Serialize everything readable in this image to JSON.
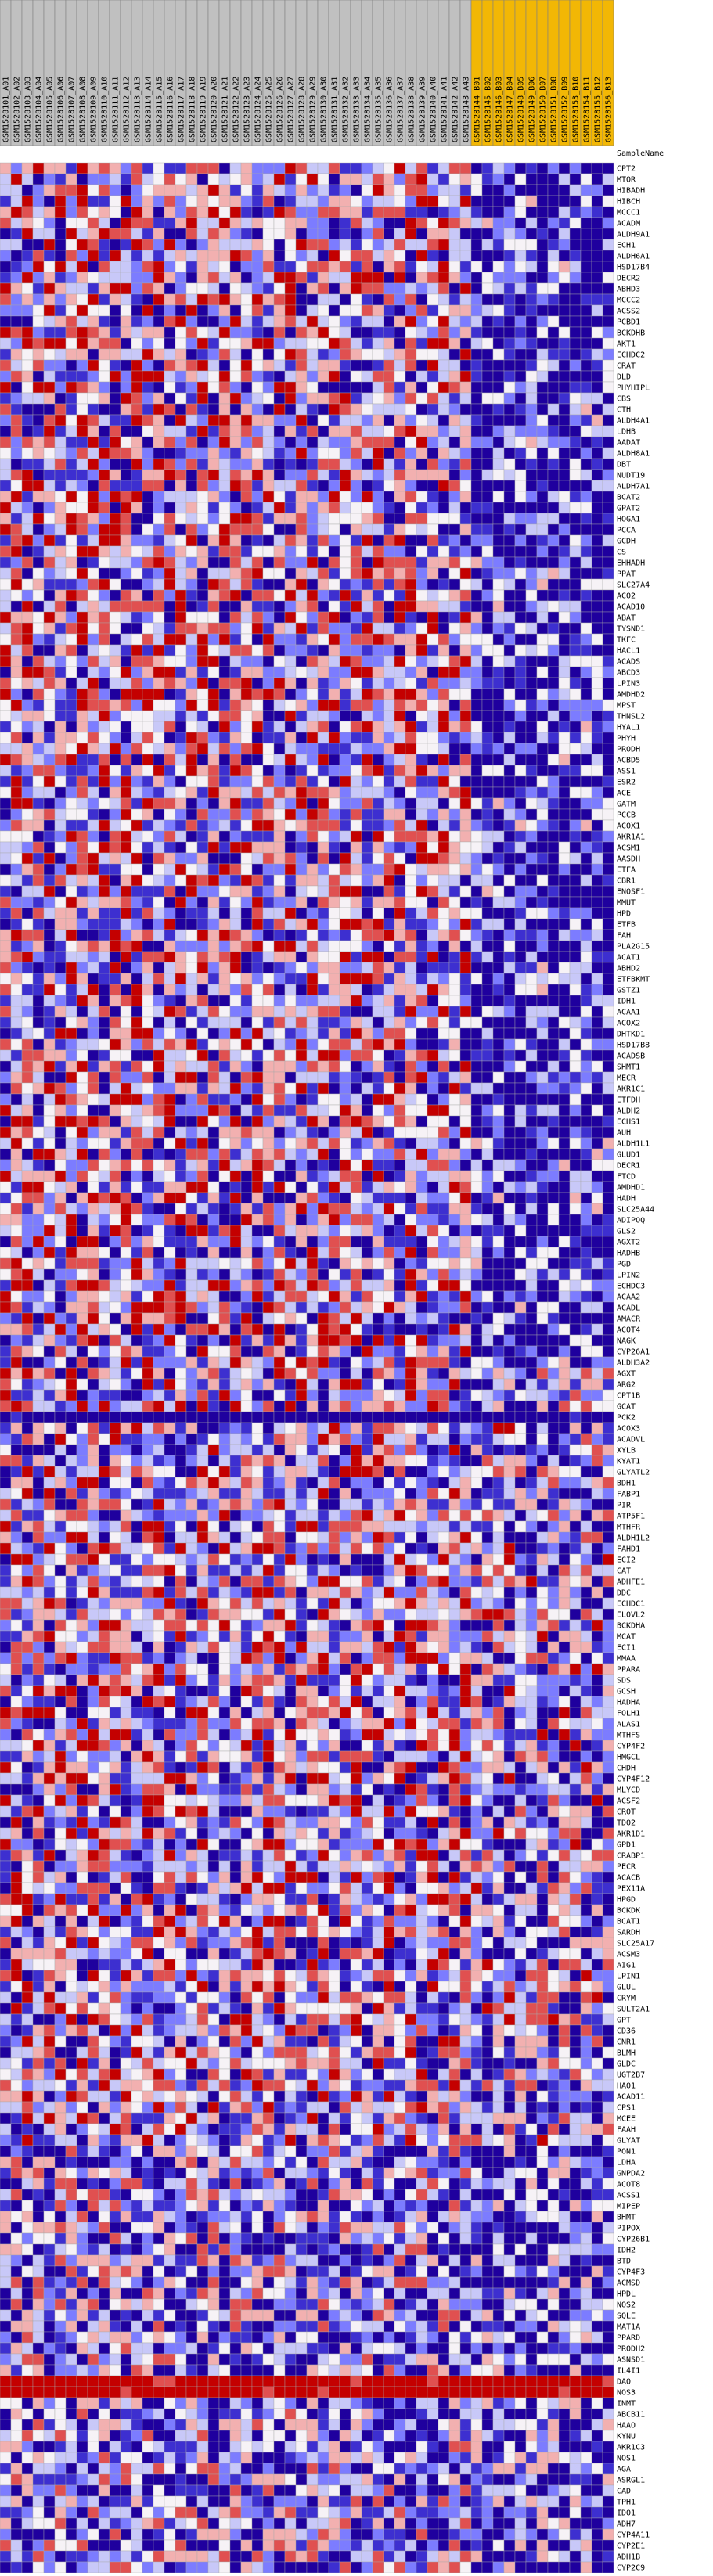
{
  "header": {
    "row_label": "SampleName"
  },
  "samples": [
    {
      "name": "GSM1528101_A01",
      "color": "#c0c0c0"
    },
    {
      "name": "GSM1528102_A02",
      "color": "#c0c0c0"
    },
    {
      "name": "GSM1528103_A03",
      "color": "#c0c0c0"
    },
    {
      "name": "GSM1528104_A04",
      "color": "#c0c0c0"
    },
    {
      "name": "GSM1528105_A05",
      "color": "#c0c0c0"
    },
    {
      "name": "GSM1528106_A06",
      "color": "#c0c0c0"
    },
    {
      "name": "GSM1528107_A07",
      "color": "#c0c0c0"
    },
    {
      "name": "GSM1528108_A08",
      "color": "#c0c0c0"
    },
    {
      "name": "GSM1528109_A09",
      "color": "#c0c0c0"
    },
    {
      "name": "GSM1528110_A10",
      "color": "#c0c0c0"
    },
    {
      "name": "GSM1528111_A11",
      "color": "#c0c0c0"
    },
    {
      "name": "GSM1528112_A12",
      "color": "#c0c0c0"
    },
    {
      "name": "GSM1528113_A13",
      "color": "#c0c0c0"
    },
    {
      "name": "GSM1528114_A14",
      "color": "#c0c0c0"
    },
    {
      "name": "GSM1528115_A15",
      "color": "#c0c0c0"
    },
    {
      "name": "GSM1528116_A16",
      "color": "#c0c0c0"
    },
    {
      "name": "GSM1528117_A17",
      "color": "#c0c0c0"
    },
    {
      "name": "GSM1528118_A18",
      "color": "#c0c0c0"
    },
    {
      "name": "GSM1528119_A19",
      "color": "#c0c0c0"
    },
    {
      "name": "GSM1528120_A20",
      "color": "#c0c0c0"
    },
    {
      "name": "GSM1528121_A21",
      "color": "#c0c0c0"
    },
    {
      "name": "GSM1528122_A22",
      "color": "#c0c0c0"
    },
    {
      "name": "GSM1528123_A23",
      "color": "#c0c0c0"
    },
    {
      "name": "GSM1528124_A24",
      "color": "#c0c0c0"
    },
    {
      "name": "GSM1528125_A25",
      "color": "#c0c0c0"
    },
    {
      "name": "GSM1528126_A26",
      "color": "#c0c0c0"
    },
    {
      "name": "GSM1528127_A27",
      "color": "#c0c0c0"
    },
    {
      "name": "GSM1528128_A28",
      "color": "#c0c0c0"
    },
    {
      "name": "GSM1528129_A29",
      "color": "#c0c0c0"
    },
    {
      "name": "GSM1528130_A30",
      "color": "#c0c0c0"
    },
    {
      "name": "GSM1528131_A31",
      "color": "#c0c0c0"
    },
    {
      "name": "GSM1528132_A32",
      "color": "#c0c0c0"
    },
    {
      "name": "GSM1528133_A33",
      "color": "#c0c0c0"
    },
    {
      "name": "GSM1528134_A34",
      "color": "#c0c0c0"
    },
    {
      "name": "GSM1528135_A35",
      "color": "#c0c0c0"
    },
    {
      "name": "GSM1528136_A36",
      "color": "#c0c0c0"
    },
    {
      "name": "GSM1528137_A37",
      "color": "#c0c0c0"
    },
    {
      "name": "GSM1528138_A38",
      "color": "#c0c0c0"
    },
    {
      "name": "GSM1528139_A39",
      "color": "#c0c0c0"
    },
    {
      "name": "GSM1528140_A40",
      "color": "#c0c0c0"
    },
    {
      "name": "GSM1528141_A41",
      "color": "#c0c0c0"
    },
    {
      "name": "GSM1528142_A42",
      "color": "#c0c0c0"
    },
    {
      "name": "GSM1528143_A43",
      "color": "#c0c0c0"
    },
    {
      "name": "GSM1528144_B01",
      "color": "#f2b705"
    },
    {
      "name": "GSM1528145_B02",
      "color": "#f2b705"
    },
    {
      "name": "GSM1528146_B03",
      "color": "#f2b705"
    },
    {
      "name": "GSM1528147_B04",
      "color": "#f2b705"
    },
    {
      "name": "GSM1528148_B05",
      "color": "#f2b705"
    },
    {
      "name": "GSM1528149_B06",
      "color": "#f2b705"
    },
    {
      "name": "GSM1528150_B07",
      "color": "#f2b705"
    },
    {
      "name": "GSM1528151_B08",
      "color": "#f2b705"
    },
    {
      "name": "GSM1528152_B09",
      "color": "#f2b705"
    },
    {
      "name": "GSM1528153_B10",
      "color": "#f2b705"
    },
    {
      "name": "GSM1528154_B11",
      "color": "#f2b705"
    },
    {
      "name": "GSM1528155_B12",
      "color": "#f2b705"
    },
    {
      "name": "GSM1528156_B13",
      "color": "#f2b705"
    }
  ],
  "genes": [
    "CPT2",
    "MTOR",
    "HIBADH",
    "HIBCH",
    "MCCC1",
    "ACADM",
    "ALDH9A1",
    "ECH1",
    "ALDH6A1",
    "HSD17B4",
    "DECR2",
    "ABHD3",
    "MCCC2",
    "ACSS2",
    "PCBD1",
    "BCKDHB",
    "AKT1",
    "ECHDC2",
    "CRAT",
    "DLD",
    "PHYHIPL",
    "CBS",
    "CTH",
    "ALDH4A1",
    "LDHB",
    "AADAT",
    "ALDH8A1",
    "DBT",
    "NUDT19",
    "ALDH7A1",
    "BCAT2",
    "GPAT2",
    "HOGA1",
    "PCCA",
    "GCDH",
    "CS",
    "EHHADH",
    "PPAT",
    "SLC27A4",
    "ACO2",
    "ACAD10",
    "ABAT",
    "TYSND1",
    "TKFC",
    "HACL1",
    "ACADS",
    "ABCD3",
    "LPIN3",
    "AMDHD2",
    "MPST",
    "THNSL2",
    "HYAL1",
    "PHYH",
    "PRODH",
    "ACBD5",
    "ASS1",
    "ESR2",
    "ACE",
    "GATM",
    "PCCB",
    "ACOX1",
    "AKR1A1",
    "ACSM1",
    "AASDH",
    "ETFA",
    "CBR1",
    "ENOSF1",
    "MMUT",
    "HPD",
    "ETFB",
    "FAH",
    "PLA2G15",
    "ACAT1",
    "ABHD2",
    "ETFBKMT",
    "GSTZ1",
    "IDH1",
    "ACAA1",
    "ACOX2",
    "DHTKD1",
    "HSD17B8",
    "ACADSB",
    "SHMT1",
    "MECR",
    "AKR1C1",
    "ETFDH",
    "ALDH2",
    "ECHS1",
    "AUH",
    "ALDH1L1",
    "GLUD1",
    "DECR1",
    "FTCD",
    "AMDHD1",
    "HADH",
    "SLC25A44",
    "ADIPOQ",
    "GLS2",
    "AGXT2",
    "HADHB",
    "PGD",
    "LPIN2",
    "ECHDC3",
    "ACAA2",
    "ACADL",
    "AMACR",
    "ACOT4",
    "NAGK",
    "CYP26A1",
    "ALDH3A2",
    "AGXT",
    "ARG2",
    "CPT1B",
    "GCAT",
    "PCK2",
    "ACOX3",
    "ACADVL",
    "XYLB",
    "KYAT1",
    "GLYATL2",
    "BDH1",
    "FABP1",
    "PIR",
    "ATP5F1",
    "MTHFR",
    "ALDH1L2",
    "FAHD1",
    "ECI2",
    "CAT",
    "ADHFE1",
    "DDC",
    "ECHDC1",
    "ELOVL2",
    "BCKDHA",
    "MCAT",
    "ECI1",
    "MMAA",
    "PPARA",
    "SDS",
    "GCSH",
    "HADHA",
    "FOLH1",
    "ALAS1",
    "MTHFS",
    "CYP4F2",
    "HMGCL",
    "CHDH",
    "CYP4F12",
    "MLYCD",
    "ACSF2",
    "CROT",
    "TDO2",
    "AKR1D1",
    "GPD1",
    "CRABP1",
    "PECR",
    "ACACB",
    "PEX11A",
    "HPGD",
    "BCKDK",
    "BCAT1",
    "SARDH",
    "SLC25A17",
    "ACSM3",
    "AIG1",
    "LPIN1",
    "GLUL",
    "CRYM",
    "SULT2A1",
    "GPT",
    "CD36",
    "CNR1",
    "BLMH",
    "GLDC",
    "UGT2B7",
    "HAO1",
    "ACAD11",
    "CPS1",
    "MCEE",
    "FAAH",
    "GLYAT",
    "PON1",
    "LDHA",
    "GNPDA2",
    "ACOT8",
    "ACSS1",
    "MIPEP",
    "BHMT",
    "PIPOX",
    "CYP26B1",
    "IDH2",
    "BTD",
    "CYP4F3",
    "ACMSD",
    "HPDL",
    "NOS2",
    "SQLE",
    "MAT1A",
    "PPARD",
    "PRODH2",
    "ASNSD1",
    "IL4I1",
    "DAO",
    "NOS3",
    "INMT",
    "ABCB11",
    "HAAO",
    "KYNU",
    "AKR1C3",
    "NOS1",
    "AGA",
    "ASRGL1",
    "CAD",
    "TPH1",
    "IDO1",
    "ADH7",
    "CYP4A11",
    "CYP2E1",
    "ADH1B",
    "CYP2C9"
  ]
}
